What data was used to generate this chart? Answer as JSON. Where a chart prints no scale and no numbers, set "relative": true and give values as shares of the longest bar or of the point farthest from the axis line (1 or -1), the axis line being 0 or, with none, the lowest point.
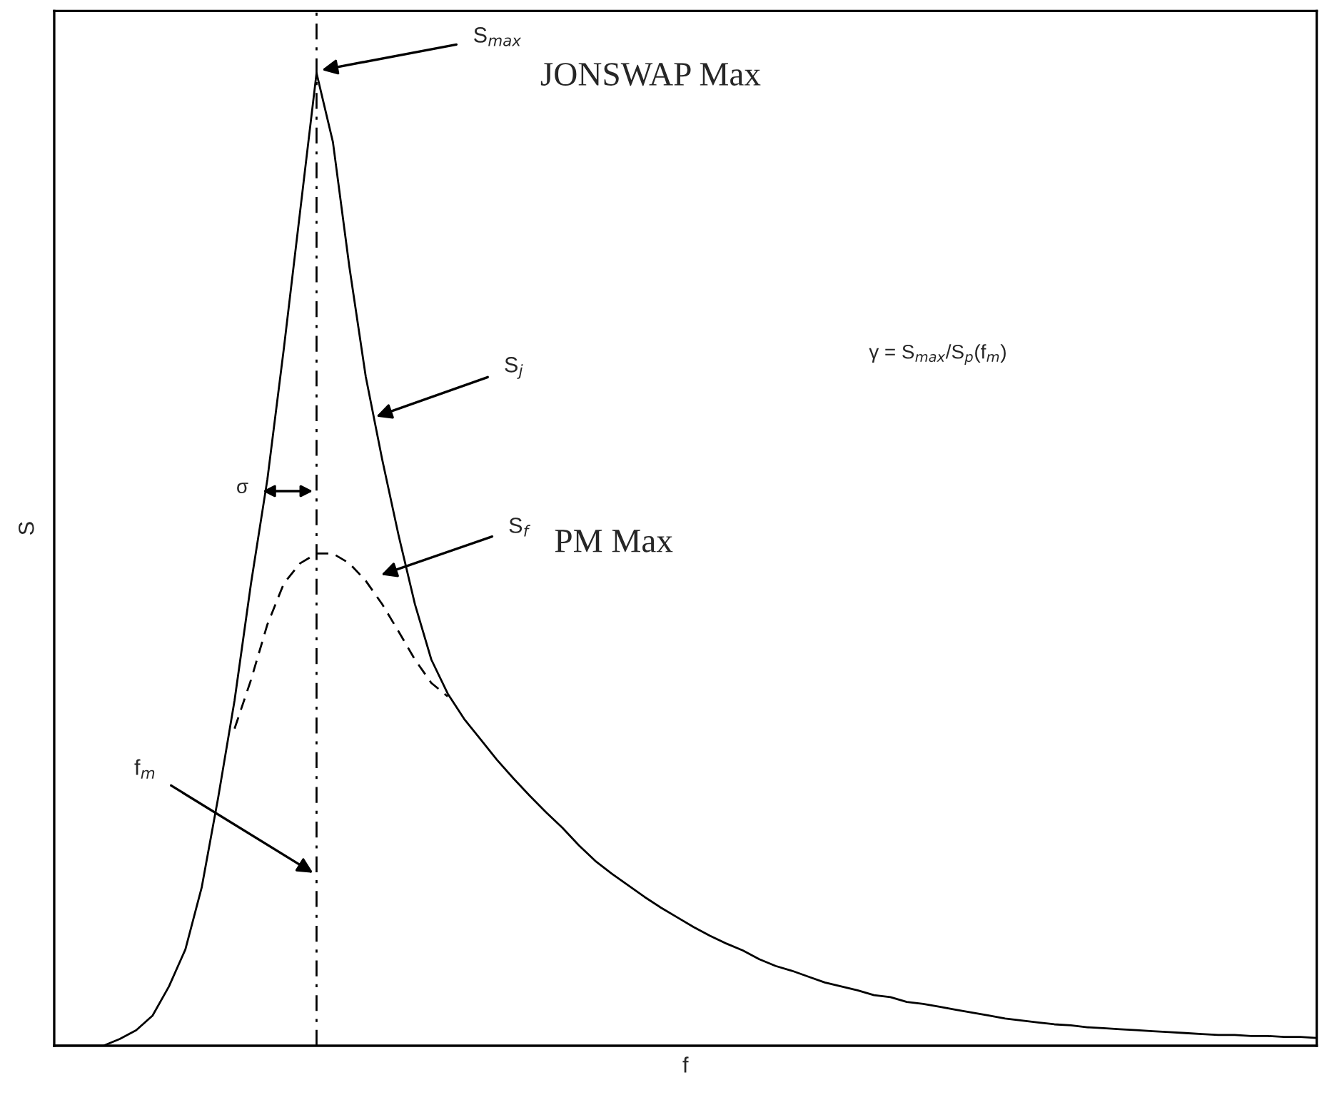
{
  "chart_data": {
    "type": "line",
    "relative": true,
    "xlabel": "f",
    "ylabel": "S",
    "categories": [
      null,
      null,
      null,
      null,
      null,
      null,
      null,
      null,
      null,
      null,
      null,
      null,
      null,
      null,
      null,
      null,
      null,
      null,
      null,
      null,
      null,
      null,
      null,
      null,
      null,
      null,
      null,
      null,
      null,
      null,
      null,
      null,
      null,
      null,
      null,
      null,
      null,
      null,
      null,
      null,
      null,
      null,
      null,
      null,
      null,
      null,
      null,
      null,
      null,
      null,
      null,
      null,
      null,
      null,
      null,
      null,
      null,
      null,
      null,
      null,
      null,
      null,
      null,
      null,
      null,
      null,
      null,
      null,
      null,
      null,
      null,
      null,
      null,
      null,
      null,
      null,
      null,
      null
    ],
    "series": [
      {
        "color": "#000000",
        "line_style": "solid",
        "values": [
          0,
          0,
          0,
          0,
          0.007,
          0.016,
          0.031,
          0.061,
          0.099,
          0.163,
          0.255,
          0.355,
          0.475,
          0.582,
          0.716,
          0.858,
          1,
          0.929,
          0.801,
          0.688,
          0.603,
          0.525,
          0.454,
          0.397,
          0.362,
          0.336,
          0.315,
          0.294,
          0.275,
          0.257,
          0.24,
          0.224,
          0.206,
          0.19,
          0.177,
          0.165,
          0.153,
          0.142,
          0.132,
          0.122,
          0.113,
          0.105,
          0.098,
          0.089,
          0.082,
          0.077,
          0.071,
          0.065,
          0.061,
          0.057,
          0.052,
          0.05,
          0.045,
          0.043,
          0.04,
          0.037,
          0.034,
          0.031,
          0.028,
          0.026,
          0.024,
          0.022,
          0.021,
          0.019,
          0.018,
          0.017,
          0.016,
          0.015,
          0.014,
          0.013,
          0.012,
          0.011,
          0.011,
          0.01,
          0.01,
          0.009,
          0.009,
          0.008
        ]
      },
      {
        "color": "#000000",
        "line_style": "dashed",
        "values": [
          null,
          null,
          null,
          null,
          null,
          null,
          null,
          null,
          null,
          null,
          null,
          0.326,
          0.376,
          0.433,
          0.475,
          0.496,
          0.506,
          0.506,
          0.496,
          0.478,
          0.454,
          0.426,
          0.397,
          0.373,
          0.359,
          null,
          null,
          null,
          null,
          null,
          null,
          null,
          null,
          null,
          null,
          null,
          null,
          null,
          null,
          null,
          null,
          null,
          null,
          null,
          null,
          null,
          null,
          null,
          null,
          null,
          null,
          null,
          null,
          null,
          null,
          null,
          null,
          null,
          null,
          null,
          null,
          null,
          null,
          null,
          null,
          null,
          null,
          null,
          null,
          null,
          null,
          null,
          null,
          null,
          null,
          null,
          null,
          null
        ]
      }
    ],
    "annotations": [
      "S$_{max}$",
      "JONSWAP Max",
      "S$_{j}$",
      "γ = S$_{max}$/S$_{p}$(f$_{m}$)",
      "σ",
      "S$_{f}$",
      "PM Max",
      "f$_{m}$"
    ],
    "grid": false,
    "legend": false
  }
}
